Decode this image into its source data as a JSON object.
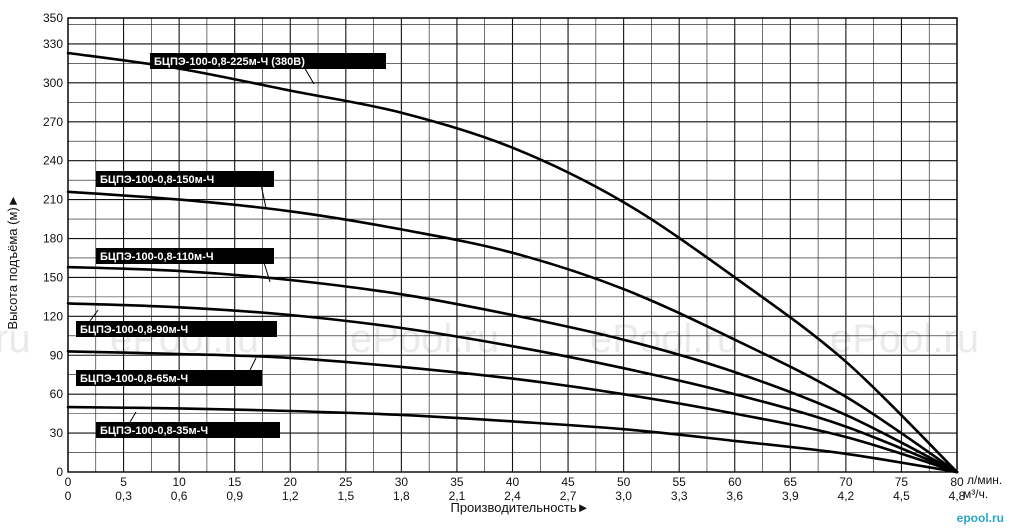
{
  "chart_data": {
    "type": "line",
    "title": "",
    "xlabel": "Производительность►",
    "ylabel": "Высота подъёма (м)►",
    "x_unit_top": "л/мин.",
    "x_unit_bottom": "м³/ч.",
    "xlim": [
      0,
      80
    ],
    "ylim": [
      0,
      350
    ],
    "grid": true,
    "x_ticks_top": [
      "0",
      "5",
      "10",
      "15",
      "20",
      "25",
      "30",
      "35",
      "40",
      "45",
      "50",
      "55",
      "60",
      "65",
      "70",
      "75",
      "80"
    ],
    "x_ticks_bottom": [
      "0",
      "0,3",
      "0,6",
      "0,9",
      "1,2",
      "1,5",
      "1,8",
      "2,1",
      "2,4",
      "2,7",
      "3,0",
      "3,3",
      "3,6",
      "3,9",
      "4,2",
      "4,5",
      "4,8"
    ],
    "y_ticks": [
      "0",
      "30",
      "60",
      "90",
      "120",
      "150",
      "180",
      "210",
      "240",
      "270",
      "300",
      "330",
      "350"
    ],
    "x": [
      0,
      10,
      20,
      30,
      40,
      50,
      60,
      70,
      80
    ],
    "series": [
      {
        "name": "БЦПЭ-100-0,8-225м-Ч (380В)",
        "values": [
          323,
          311,
          294,
          277,
          250,
          208,
          150,
          85,
          0
        ]
      },
      {
        "name": "БЦПЭ-100-0,8-150м-Ч",
        "values": [
          216,
          210,
          201,
          187,
          169,
          141,
          102,
          58,
          0
        ]
      },
      {
        "name": "БЦПЭ-100-0,8-110м-Ч",
        "values": [
          158,
          155,
          148,
          137,
          121,
          102,
          77,
          44,
          0
        ]
      },
      {
        "name": "БЦПЭ-100-0,8-90м-Ч",
        "values": [
          130,
          127,
          121,
          111,
          97,
          80,
          60,
          35,
          0
        ]
      },
      {
        "name": "БЦПЭ-100-0,8-65м-Ч",
        "values": [
          93,
          91,
          88,
          81,
          72,
          60,
          45,
          27,
          0
        ]
      },
      {
        "name": "БЦПЭ-100-0,8-35м-Ч",
        "values": [
          50,
          49,
          47,
          44,
          39,
          33,
          24,
          14,
          0
        ]
      }
    ],
    "watermarks": [
      "ru",
      "ePool.ru",
      "ePool.ru",
      "ePool.ru",
      "ePool.ru"
    ],
    "logo": "epool.ru"
  }
}
